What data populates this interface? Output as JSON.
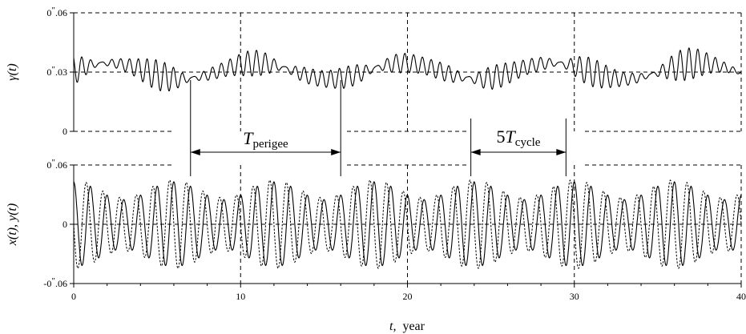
{
  "chart_data": [
    {
      "type": "line",
      "name": "gamma-panel",
      "ylabel": "γ(t)",
      "ylim": [
        0,
        0.06
      ],
      "xlim": [
        0,
        40
      ],
      "yticks": [
        {
          "value": 0.06,
          "int": "0",
          "sec": "″",
          "frac": ".06"
        },
        {
          "value": 0.03,
          "int": "0",
          "sec": "″",
          "frac": ".03"
        },
        {
          "value": 0.0,
          "int": "0",
          "sec": "",
          "frac": ""
        }
      ],
      "grid": "dashed",
      "series": [
        {
          "style": "solid",
          "mean": 0.0305,
          "env_amp": 0.0045,
          "env_period": 8.85,
          "env_phase_year": 6.5,
          "osc_amp": 0.0085,
          "osc_period": 0.55
        }
      ]
    },
    {
      "type": "line",
      "name": "xy-panel",
      "ylabel": "x(t), y(t)",
      "ylim": [
        -0.06,
        0.06
      ],
      "xlim": [
        0,
        40
      ],
      "yticks": [
        {
          "value": 0.06,
          "int": "0",
          "sec": "″",
          "frac": ".06"
        },
        {
          "value": 0.0,
          "int": "0",
          "sec": "",
          "frac": ""
        },
        {
          "value": -0.06,
          "int": "-0",
          "sec": "″",
          "frac": ".06"
        }
      ],
      "xticks": [
        0,
        10,
        20,
        30,
        40
      ],
      "xlabel_var": "t,",
      "xlabel_unit": "year",
      "grid": "dashed",
      "series": [
        {
          "style": "solid",
          "amp": 0.034,
          "period": 1.0,
          "phase": 0.0,
          "beat_amp": 0.009,
          "beat_period": 6.0
        },
        {
          "style": "dashed",
          "amp": 0.036,
          "period": 1.0,
          "phase": 0.25,
          "beat_amp": 0.009,
          "beat_period": 6.0
        }
      ]
    }
  ],
  "annotations": {
    "perigee": {
      "symbol": "T",
      "sub": "perigee",
      "x_start": 7.0,
      "x_end": 16.0
    },
    "cycle": {
      "prefix": "5",
      "symbol": "T",
      "sub": "cycle",
      "x_start": 23.8,
      "x_end": 29.5
    }
  }
}
